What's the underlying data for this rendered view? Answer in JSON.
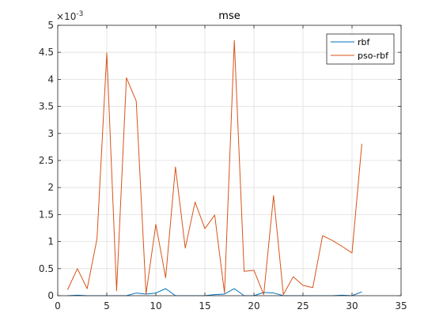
{
  "chart_data": {
    "type": "line",
    "title": "mse",
    "xlabel": "",
    "ylabel": "",
    "y_exponent": {
      "base": "×10",
      "power": "-3"
    },
    "xlim": [
      0,
      35
    ],
    "ylim": [
      0,
      5
    ],
    "x_ticks": [
      0,
      5,
      10,
      15,
      20,
      25,
      30,
      35
    ],
    "x_tick_labels": [
      "0",
      "5",
      "10",
      "15",
      "20",
      "25",
      "30",
      "35"
    ],
    "y_ticks": [
      0,
      0.5,
      1,
      1.5,
      2,
      2.5,
      3,
      3.5,
      4,
      4.5,
      5
    ],
    "y_tick_labels": [
      "0",
      "0.5",
      "1",
      "1.5",
      "2",
      "2.5",
      "3",
      "3.5",
      "4",
      "4.5",
      "5"
    ],
    "grid": true,
    "legend_position": "top-right",
    "x": [
      1,
      2,
      3,
      4,
      5,
      6,
      7,
      8,
      9,
      10,
      11,
      12,
      13,
      14,
      15,
      16,
      17,
      18,
      19,
      20,
      21,
      22,
      23,
      24,
      25,
      26,
      27,
      28,
      29,
      30,
      31
    ],
    "series": [
      {
        "name": "rbf",
        "color": "#0072BD",
        "values": [
          0.0,
          0.01,
          0.0,
          0.0,
          0.0,
          0.0,
          0.0,
          0.05,
          0.03,
          0.05,
          0.13,
          0.0,
          0.0,
          0.0,
          0.0,
          0.02,
          0.03,
          0.13,
          0.0,
          0.0,
          0.06,
          0.05,
          0.0,
          0.0,
          0.0,
          0.0,
          0.0,
          0.0,
          0.01,
          0.0,
          0.07
        ]
      },
      {
        "name": "pso-rbf",
        "color": "#D95319",
        "values": [
          0.11,
          0.5,
          0.13,
          1.05,
          4.49,
          0.09,
          4.03,
          3.6,
          0.03,
          1.32,
          0.33,
          2.38,
          0.88,
          1.73,
          1.24,
          1.49,
          0.05,
          4.72,
          0.45,
          0.47,
          0.02,
          1.85,
          0.02,
          0.35,
          0.19,
          0.15,
          1.11,
          1.02,
          0.91,
          0.79,
          2.81
        ]
      }
    ]
  }
}
